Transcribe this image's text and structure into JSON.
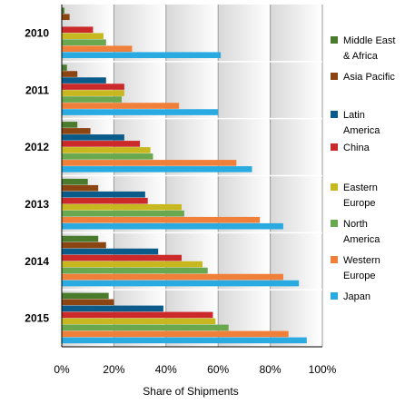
{
  "chart_data": {
    "type": "bar",
    "orientation": "horizontal",
    "categories": [
      "2010",
      "2011",
      "2012",
      "2013",
      "2014",
      "2015"
    ],
    "series": [
      {
        "name": "Middle East & Africa",
        "legend_lines": [
          "Middle East",
          "& Africa"
        ],
        "color": "#4a7a2c",
        "values": [
          1,
          2,
          6,
          10,
          14,
          18
        ]
      },
      {
        "name": "Asia Pacific",
        "legend_lines": [
          "Asia Pacific"
        ],
        "color": "#8b4513",
        "values": [
          3,
          6,
          11,
          14,
          17,
          20
        ]
      },
      {
        "name": "Latin America",
        "legend_lines": [
          "Latin",
          "America"
        ],
        "color": "#0a5a8a",
        "values": [
          0,
          17,
          24,
          32,
          37,
          39
        ]
      },
      {
        "name": "China",
        "legend_lines": [
          "China"
        ],
        "color": "#cc2a2a",
        "values": [
          12,
          24,
          30,
          33,
          46,
          58
        ]
      },
      {
        "name": "Eastern Europe",
        "legend_lines": [
          "Eastern",
          "Europe"
        ],
        "color": "#c8b820",
        "values": [
          16,
          24,
          34,
          46,
          54,
          59
        ]
      },
      {
        "name": "North America",
        "legend_lines": [
          "North",
          "America"
        ],
        "color": "#6aa84f",
        "values": [
          17,
          23,
          35,
          47,
          56,
          64
        ]
      },
      {
        "name": "Western Europe",
        "legend_lines": [
          "Western",
          "Europe"
        ],
        "color": "#f07f3a",
        "values": [
          27,
          45,
          67,
          76,
          85,
          87
        ]
      },
      {
        "name": "Japan",
        "legend_lines": [
          "Japan"
        ],
        "color": "#29abe2",
        "values": [
          61,
          60,
          73,
          85,
          91,
          94
        ]
      }
    ],
    "xlabel": "Share of Shipments",
    "ylabel": "",
    "xlim": [
      0,
      100
    ],
    "xticks": [
      "0%",
      "20%",
      "40%",
      "60%",
      "80%",
      "100%"
    ],
    "grid": true,
    "legend_position": "right"
  }
}
